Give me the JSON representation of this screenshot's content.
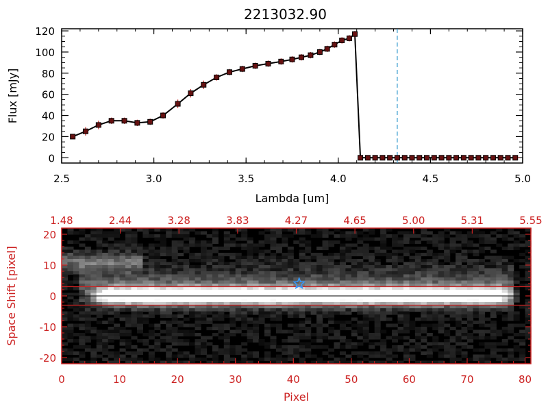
{
  "chart_data": [
    {
      "type": "line",
      "title": "2213032.90",
      "xlabel": "Lambda [um]",
      "ylabel": "Flux [mJy]",
      "xlim": [
        2.5,
        5.0
      ],
      "ylim": [
        -5,
        122
      ],
      "xticks": [
        "2.5",
        "3.0",
        "3.5",
        "4.0",
        "4.5",
        "5.0"
      ],
      "yticks": [
        "0",
        "20",
        "40",
        "60",
        "80",
        "100",
        "120"
      ],
      "reference_line_x": 4.32,
      "series": [
        {
          "name": "flux",
          "x": [
            2.56,
            2.63,
            2.7,
            2.77,
            2.84,
            2.91,
            2.98,
            3.05,
            3.13,
            3.2,
            3.27,
            3.34,
            3.41,
            3.48,
            3.55,
            3.62,
            3.69,
            3.75,
            3.8,
            3.85,
            3.9,
            3.94,
            3.98,
            4.02,
            4.06,
            4.09,
            4.12,
            4.16,
            4.2,
            4.24,
            4.28,
            4.32,
            4.36,
            4.4,
            4.44,
            4.48,
            4.52,
            4.56,
            4.6,
            4.64,
            4.68,
            4.72,
            4.76,
            4.8,
            4.84,
            4.88,
            4.92,
            4.96
          ],
          "y": [
            20,
            25,
            31,
            35,
            35,
            33,
            34,
            40,
            51,
            61,
            69,
            76,
            81,
            84,
            87,
            89,
            91,
            93,
            95,
            97,
            100,
            103,
            107,
            111,
            113,
            117,
            0,
            0,
            0,
            0,
            0,
            0,
            0,
            0,
            0,
            0,
            0,
            0,
            0,
            0,
            0,
            0,
            0,
            0,
            0,
            0,
            0,
            0
          ],
          "error": [
            2,
            4,
            4,
            3,
            3,
            3,
            3,
            3,
            4,
            4,
            4,
            3,
            3,
            3,
            3,
            3,
            3,
            3,
            3,
            3,
            3,
            3,
            3,
            3,
            3,
            3,
            0,
            0,
            0,
            0,
            0,
            0,
            0,
            0,
            0,
            0,
            0,
            0,
            0,
            0,
            0,
            0,
            0,
            0,
            0,
            0,
            0,
            0
          ]
        }
      ]
    },
    {
      "type": "heatmap",
      "xlabel": "Pixel",
      "ylabel": "Space Shift [pixel]",
      "xlim": [
        0,
        81
      ],
      "ylim": [
        -22,
        22
      ],
      "xticks": [
        "0",
        "10",
        "20",
        "30",
        "40",
        "50",
        "60",
        "70",
        "80"
      ],
      "yticks": [
        "-20",
        "-10",
        "0",
        "10",
        "20"
      ],
      "top_ticks": [
        "1.48",
        "2.44",
        "3.28",
        "3.83",
        "4.27",
        "4.65",
        "5.00",
        "5.31",
        "5.55"
      ],
      "aperture_lines_y": [
        3,
        -3
      ],
      "center_line_y": 0,
      "star_marker": [
        41,
        4
      ],
      "colors": {
        "axes": "#cc2222",
        "star": "#3399ff"
      }
    }
  ],
  "colors": {
    "axis": "#000000",
    "error_bar": "#cc2222",
    "marker_fill": "#661111",
    "reference_line": "#3399cc",
    "red_axis": "#cc2222"
  }
}
